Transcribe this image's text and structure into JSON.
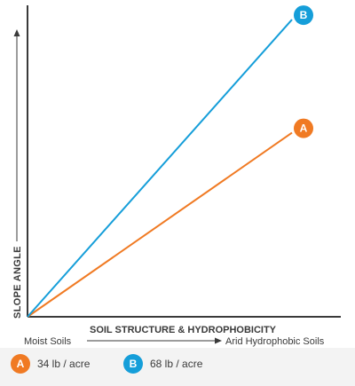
{
  "chart_data": {
    "type": "line",
    "ylabel": "SLOPE ANGLE",
    "xlabel": "SOIL STRUCTURE & HYDROPHOBICITY",
    "x_start_label": "Moist Soils",
    "x_end_label": "Arid Hydrophobic Soils",
    "grid": false,
    "series": [
      {
        "name": "A",
        "color": "#f07a23",
        "x": [
          0,
          1
        ],
        "y": [
          0,
          0.61
        ]
      },
      {
        "name": "B",
        "color": "#159ed9",
        "x": [
          0,
          1
        ],
        "y": [
          0,
          0.985
        ]
      }
    ]
  },
  "legend": [
    {
      "badge": "A",
      "label": "34 lb / acre",
      "color": "#f07a23"
    },
    {
      "badge": "B",
      "label": "68 lb / acre",
      "color": "#159ed9"
    }
  ]
}
